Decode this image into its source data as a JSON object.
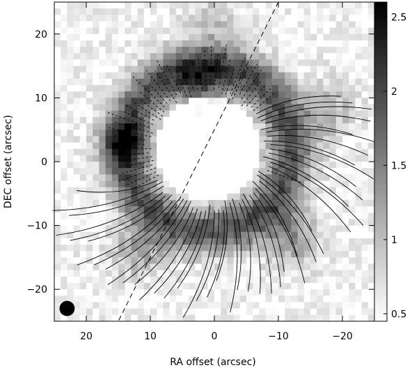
{
  "chart_data": {
    "type": "heatmap",
    "title": "",
    "xlabel": "RA offset (arcsec)",
    "ylabel": "DEC offset (arcsec)",
    "xlim": [
      25,
      -25
    ],
    "ylim": [
      -25,
      25
    ],
    "x_ticks": [
      20,
      10,
      0,
      -10,
      -20
    ],
    "x_tick_labels": [
      "20",
      "10",
      "0",
      "−10",
      "−20"
    ],
    "y_ticks": [
      20,
      10,
      0,
      -10,
      -20
    ],
    "y_tick_labels": [
      "20",
      "10",
      "0",
      "−10",
      "−20"
    ],
    "colorbar": {
      "range": [
        0.45,
        2.6
      ],
      "ticks": [
        2.5,
        2,
        1.5,
        1,
        0.5
      ],
      "tick_labels": [
        "2.5",
        "2",
        "1.5",
        "1",
        "0.5"
      ],
      "colormap": "white-to-black grayscale"
    },
    "ring": {
      "center": [
        1,
        2
      ],
      "radius_peak": 13,
      "width": 3.5,
      "peak_intensity": 1.9
    },
    "blobs": [
      {
        "x": 2,
        "y": 12,
        "amplitude": 0.9,
        "sigma": 3
      },
      {
        "x": 14,
        "y": 3,
        "amplitude": 1.0,
        "sigma": 2.5
      },
      {
        "x": -12,
        "y": -12,
        "amplitude": 0.8,
        "sigma": 3
      },
      {
        "x": 12,
        "y": -14,
        "amplitude": 0.6,
        "sigma": 3
      },
      {
        "x": -18,
        "y": 8,
        "amplitude": 0.5,
        "sigma": 3
      },
      {
        "x": 0,
        "y": 22,
        "amplitude": 0.4,
        "sigma": 3
      }
    ],
    "dashed_line": {
      "from": [
        -10,
        25
      ],
      "to": [
        15,
        -25
      ]
    },
    "beam": {
      "x": 23,
      "y": -23,
      "diameter": 1.5
    },
    "annotations": [
      {
        "type": "dashed-contour-arcs",
        "region": "inner ring, northern and eastern sides"
      },
      {
        "type": "solid-contour-lines",
        "region": "southern and eastern outer regions"
      }
    ]
  }
}
